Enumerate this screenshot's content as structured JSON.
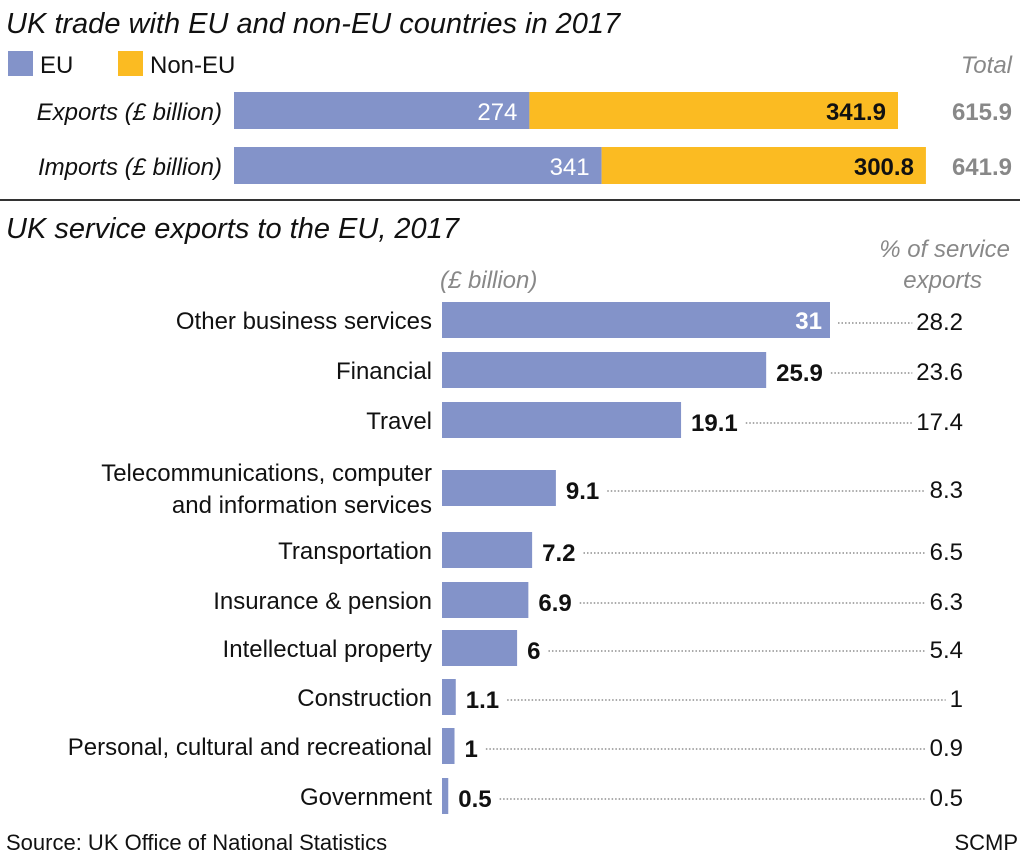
{
  "colors": {
    "eu": "#8393c9",
    "non_eu": "#fbbb22",
    "total_text": "#888888"
  },
  "chart_data": [
    {
      "type": "bar",
      "orientation": "horizontal",
      "stacked": true,
      "title": "UK trade with EU and non-EU countries in 2017",
      "categories": [
        "Exports (£ billion)",
        "Imports (£ billion)"
      ],
      "series": [
        {
          "name": "EU",
          "values": [
            274,
            341
          ]
        },
        {
          "name": "Non-EU",
          "values": [
            341.9,
            300.8
          ]
        }
      ],
      "total_label": "Total",
      "totals": [
        "615.9",
        "641.9"
      ],
      "value_labels": [
        [
          "274",
          "341.9"
        ],
        [
          "341",
          "300.8"
        ]
      ],
      "legend": "top-left",
      "grid": false
    },
    {
      "type": "bar",
      "orientation": "horizontal",
      "title": "UK service exports to the EU, 2017",
      "unit_label": "(£ billion)",
      "pct_header": [
        "% of service",
        "exports"
      ],
      "categories": [
        [
          "Other business services"
        ],
        [
          "Financial"
        ],
        [
          "Travel"
        ],
        [
          "Telecommunications, computer",
          "and information services"
        ],
        [
          "Transportation"
        ],
        [
          "Insurance & pension"
        ],
        [
          "Intellectual property"
        ],
        [
          "Construction"
        ],
        [
          "Personal, cultural and recreational"
        ],
        [
          "Government"
        ]
      ],
      "values": [
        31,
        25.9,
        19.1,
        9.1,
        7.2,
        6.9,
        6,
        1.1,
        1,
        0.5
      ],
      "value_labels": [
        "31",
        "25.9",
        "19.1",
        "9.1",
        "7.2",
        "6.9",
        "6",
        "1.1",
        "1",
        "0.5"
      ],
      "pct_of_service_exports": [
        "28.2",
        "23.6",
        "17.4",
        "8.3",
        "6.5",
        "6.3",
        "5.4",
        "1",
        "0.9",
        "0.5"
      ],
      "grid": false
    }
  ],
  "footer": {
    "source": "Source: UK Office of National Statistics",
    "credit": "SCMP"
  }
}
